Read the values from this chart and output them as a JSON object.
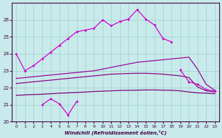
{
  "xlabel": "Windchill (Refroidissement éolien,°C)",
  "xlim": [
    -0.5,
    23.5
  ],
  "ylim": [
    20,
    27
  ],
  "yticks": [
    20,
    21,
    22,
    23,
    24,
    25,
    26
  ],
  "xticks": [
    0,
    1,
    2,
    3,
    4,
    5,
    6,
    7,
    8,
    9,
    10,
    11,
    12,
    13,
    14,
    15,
    16,
    17,
    18,
    19,
    20,
    21,
    22,
    23
  ],
  "bg_color": "#c8eaea",
  "grid_color": "#a0cccc",
  "s1_x": [
    0,
    1,
    2,
    3,
    4,
    5,
    6,
    7,
    8,
    9,
    10,
    11,
    12,
    13,
    14,
    15,
    16,
    17,
    18
  ],
  "s1_y": [
    24.0,
    23.0,
    23.3,
    23.7,
    24.1,
    24.5,
    24.9,
    25.3,
    25.4,
    25.5,
    26.0,
    25.65,
    25.9,
    26.05,
    26.6,
    26.05,
    25.7,
    24.9,
    24.7
  ],
  "s2_x": [
    0,
    1,
    2,
    3,
    4,
    5,
    6,
    7,
    8,
    9,
    10,
    11,
    12,
    13,
    14,
    15,
    16,
    17,
    18,
    19,
    20,
    21,
    22,
    23
  ],
  "s2_y": [
    22.55,
    22.6,
    22.65,
    22.7,
    22.75,
    22.8,
    22.85,
    22.9,
    22.95,
    23.0,
    23.1,
    23.2,
    23.3,
    23.4,
    23.5,
    23.55,
    23.6,
    23.65,
    23.7,
    23.75,
    23.8,
    23.1,
    22.2,
    21.85
  ],
  "s3_x": [
    0,
    1,
    2,
    3,
    4,
    5,
    6,
    7,
    8,
    9,
    10,
    11,
    12,
    13,
    14,
    15,
    16,
    17,
    18,
    19,
    20,
    21,
    22,
    23
  ],
  "s3_y": [
    22.25,
    22.3,
    22.35,
    22.4,
    22.45,
    22.5,
    22.55,
    22.6,
    22.65,
    22.7,
    22.75,
    22.8,
    22.82,
    22.84,
    22.85,
    22.85,
    22.83,
    22.8,
    22.75,
    22.7,
    22.6,
    22.05,
    21.82,
    21.75
  ],
  "s4_seg1_x": [
    3,
    4,
    5,
    6,
    7
  ],
  "s4_seg1_y": [
    21.0,
    21.35,
    21.05,
    20.4,
    21.2
  ],
  "s4_seg2_x": [
    19,
    20,
    21,
    22,
    23
  ],
  "s4_seg2_y": [
    23.05,
    22.35,
    22.2,
    21.9,
    21.8
  ],
  "s5_x": [
    0,
    1,
    2,
    3,
    4,
    5,
    6,
    7,
    8,
    9,
    10,
    11,
    12,
    13,
    14,
    15,
    16,
    17,
    18,
    19,
    20,
    21,
    22,
    23
  ],
  "s5_y": [
    21.55,
    21.58,
    21.6,
    21.62,
    21.65,
    21.68,
    21.7,
    21.72,
    21.75,
    21.78,
    21.8,
    21.82,
    21.84,
    21.85,
    21.86,
    21.87,
    21.87,
    21.86,
    21.85,
    21.82,
    21.75,
    21.7,
    21.68,
    21.65
  ],
  "color_main": "#cc00cc",
  "color_upper": "#990099",
  "color_mid": "#880088",
  "color_lower": "#770077",
  "tick_color": "#440044",
  "label_color": "#440044",
  "spine_color": "#440044"
}
